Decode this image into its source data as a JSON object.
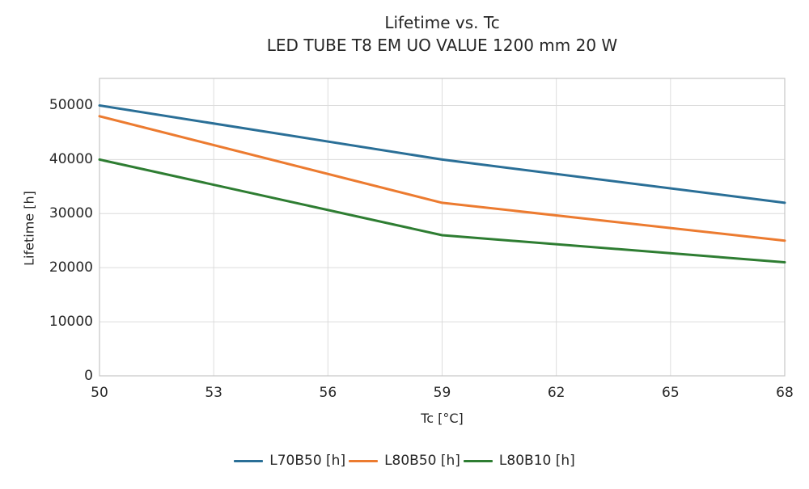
{
  "chart_data": {
    "type": "line",
    "title": "Lifetime vs. Tc",
    "subtitle": "LED TUBE T8 EM UO VALUE 1200 mm 20 W",
    "xlabel": "Tc [°C]",
    "ylabel": "Lifetime [h]",
    "x": [
      50,
      59,
      68
    ],
    "xlim": [
      50,
      68
    ],
    "ylim": [
      0,
      55000
    ],
    "xticks": [
      50,
      53,
      56,
      59,
      62,
      65,
      68
    ],
    "yticks": [
      0,
      10000,
      20000,
      30000,
      40000,
      50000
    ],
    "series": [
      {
        "name": "L70B50 [h]",
        "color": "#2a6f97",
        "values": [
          50000,
          40000,
          32000
        ]
      },
      {
        "name": "L80B50 [h]",
        "color": "#ec7b30",
        "values": [
          48000,
          32000,
          25000
        ]
      },
      {
        "name": "L80B10 [h]",
        "color": "#2e7d32",
        "values": [
          40000,
          26000,
          21000
        ]
      }
    ],
    "grid": true,
    "legend_position": "bottom",
    "colors": {
      "gridline": "#dcdcdc",
      "spine": "#c6c6c6",
      "text": "#262626",
      "background": "#ffffff"
    }
  }
}
